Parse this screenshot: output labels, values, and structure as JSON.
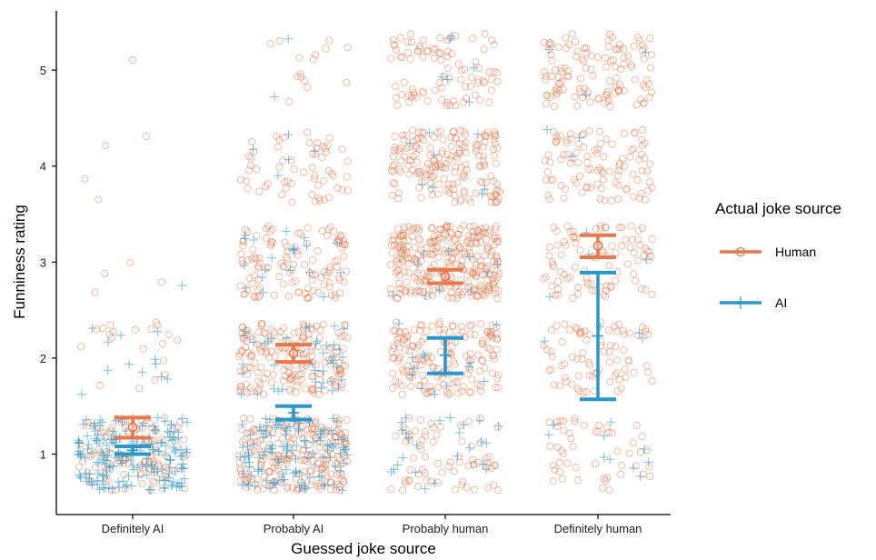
{
  "chart_data": {
    "type": "scatter",
    "categories": [
      "Definitely AI",
      "Probably AI",
      "Probably human",
      "Definitely human"
    ],
    "xlabel": "Guessed joke source",
    "ylabel": "Funniness rating",
    "yticks": [
      1,
      2,
      3,
      4,
      5
    ],
    "ylim": [
      0.55,
      5.55
    ],
    "jitter": "points jittered within each rating level",
    "grid": false,
    "legend": {
      "title": "Actual joke source",
      "placement": "right",
      "entries": [
        {
          "name": "Human",
          "marker": "circle",
          "color": "#E8774A"
        },
        {
          "name": "AI",
          "marker": "plus",
          "color": "#2B96C8"
        }
      ]
    },
    "series": [
      {
        "name": "Human",
        "color": "#E8774A",
        "mean": [
          1.28,
          2.05,
          2.85,
          3.17
        ],
        "ci_low": [
          1.17,
          1.96,
          2.78,
          3.05
        ],
        "ci_high": [
          1.38,
          2.14,
          2.92,
          3.28
        ],
        "approx_counts": [
          {
            "1": 110,
            "2": 20,
            "3": 4,
            "4": 4,
            "5": 1
          },
          {
            "1": 220,
            "2": 180,
            "3": 120,
            "4": 60,
            "5": 15
          },
          {
            "1": 70,
            "2": 170,
            "3": 300,
            "4": 180,
            "5": 90
          },
          {
            "1": 50,
            "2": 80,
            "3": 90,
            "4": 100,
            "5": 120
          }
        ]
      },
      {
        "name": "AI",
        "color": "#2B96C8",
        "mean": [
          1.04,
          1.43,
          2.03,
          2.23
        ],
        "ci_low": [
          1.0,
          1.36,
          1.84,
          1.57
        ],
        "ci_high": [
          1.08,
          1.5,
          2.21,
          2.89
        ],
        "approx_counts": [
          {
            "1": 180,
            "2": 12,
            "3": 1,
            "4": 0,
            "5": 0
          },
          {
            "1": 120,
            "2": 40,
            "3": 20,
            "4": 5,
            "5": 2
          },
          {
            "1": 25,
            "2": 15,
            "3": 10,
            "4": 8,
            "5": 6
          },
          {
            "1": 10,
            "2": 4,
            "3": 4,
            "4": 3,
            "5": 3
          }
        ]
      }
    ]
  }
}
